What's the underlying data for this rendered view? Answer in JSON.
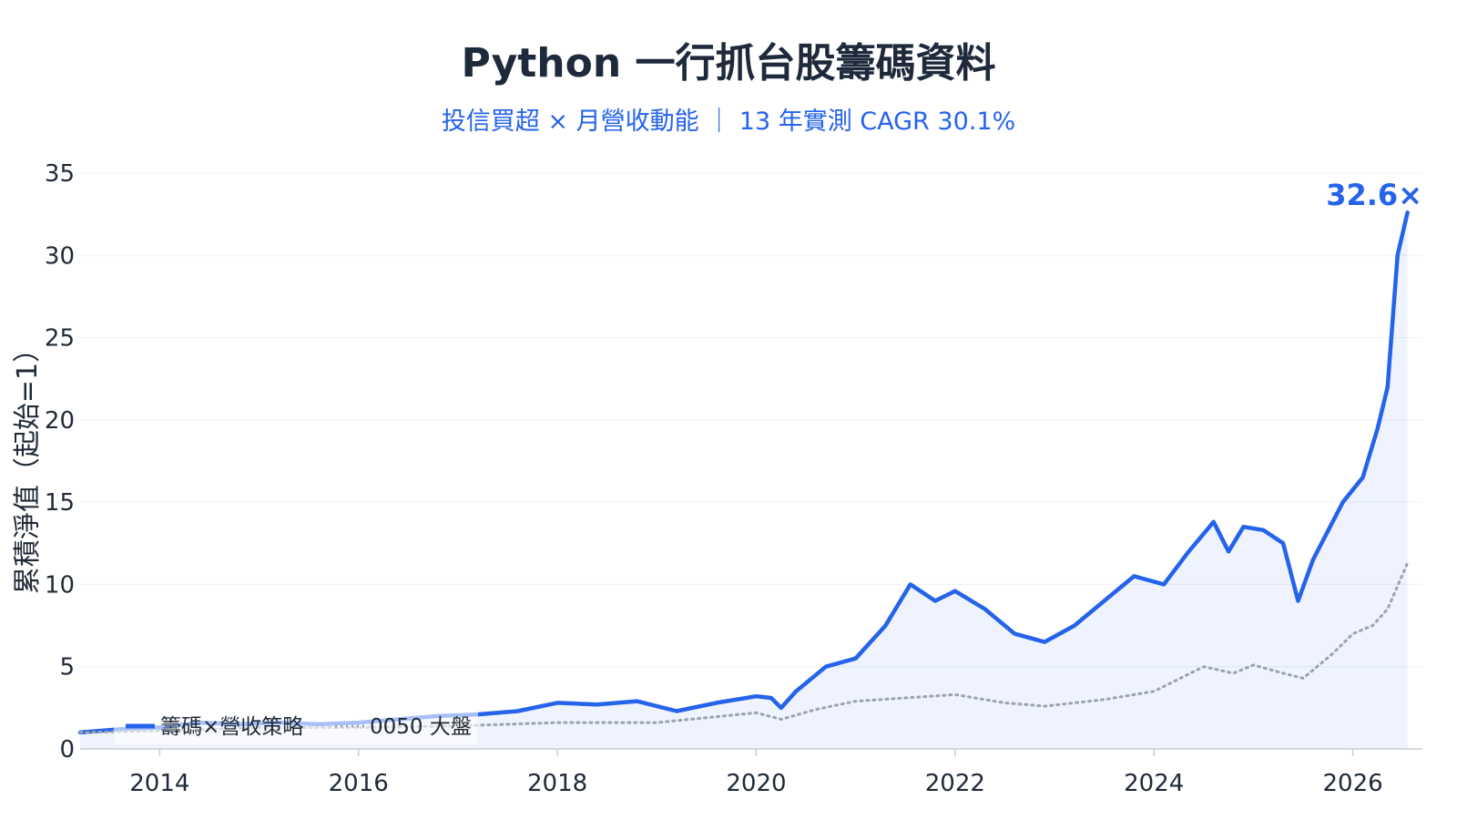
{
  "title": "Python 一行抓台股籌碼資料",
  "subtitle": "投信買超 × 月營收動能 ｜ 13 年實測 CAGR 30.1%",
  "chart_data": {
    "type": "line",
    "ylabel": "累積淨值（起始=1）",
    "ylim": [
      0,
      35
    ],
    "xlim": [
      2013.2,
      2026.7
    ],
    "y_ticks": [
      0,
      5,
      10,
      15,
      20,
      25,
      30,
      35
    ],
    "x_ticks": [
      2014,
      2016,
      2018,
      2020,
      2022,
      2024,
      2026
    ],
    "grid": true,
    "legend_position": "bottom-left",
    "end_label": "32.6×",
    "series": [
      {
        "name": "籌碼×營收策略",
        "color": "#2563eb",
        "style": "solid",
        "fill": true,
        "points": [
          [
            2013.2,
            1.0
          ],
          [
            2013.6,
            1.2
          ],
          [
            2014.0,
            1.3
          ],
          [
            2014.4,
            1.6
          ],
          [
            2014.8,
            1.5
          ],
          [
            2015.2,
            1.6
          ],
          [
            2015.6,
            1.5
          ],
          [
            2016.0,
            1.6
          ],
          [
            2016.4,
            1.8
          ],
          [
            2016.8,
            2.0
          ],
          [
            2017.2,
            2.1
          ],
          [
            2017.6,
            2.3
          ],
          [
            2018.0,
            2.8
          ],
          [
            2018.4,
            2.7
          ],
          [
            2018.8,
            2.9
          ],
          [
            2019.2,
            2.3
          ],
          [
            2019.6,
            2.8
          ],
          [
            2020.0,
            3.2
          ],
          [
            2020.15,
            3.1
          ],
          [
            2020.25,
            2.5
          ],
          [
            2020.4,
            3.5
          ],
          [
            2020.7,
            5.0
          ],
          [
            2021.0,
            5.5
          ],
          [
            2021.3,
            7.5
          ],
          [
            2021.55,
            10.0
          ],
          [
            2021.8,
            9.0
          ],
          [
            2022.0,
            9.6
          ],
          [
            2022.3,
            8.5
          ],
          [
            2022.6,
            7.0
          ],
          [
            2022.9,
            6.5
          ],
          [
            2023.2,
            7.5
          ],
          [
            2023.5,
            9.0
          ],
          [
            2023.8,
            10.5
          ],
          [
            2024.1,
            10.0
          ],
          [
            2024.35,
            12.0
          ],
          [
            2024.6,
            13.8
          ],
          [
            2024.75,
            12.0
          ],
          [
            2024.9,
            13.5
          ],
          [
            2025.1,
            13.3
          ],
          [
            2025.3,
            12.5
          ],
          [
            2025.45,
            9.0
          ],
          [
            2025.6,
            11.5
          ],
          [
            2025.9,
            15.0
          ],
          [
            2026.1,
            16.5
          ],
          [
            2026.25,
            19.5
          ],
          [
            2026.35,
            22.0
          ],
          [
            2026.45,
            30.0
          ],
          [
            2026.55,
            32.6
          ]
        ]
      },
      {
        "name": "0050 大盤",
        "color": "#9ca3af",
        "style": "dotted",
        "fill": false,
        "points": [
          [
            2013.2,
            1.0
          ],
          [
            2014.0,
            1.1
          ],
          [
            2015.0,
            1.3
          ],
          [
            2016.0,
            1.3
          ],
          [
            2017.0,
            1.4
          ],
          [
            2018.0,
            1.6
          ],
          [
            2019.0,
            1.6
          ],
          [
            2020.0,
            2.2
          ],
          [
            2020.25,
            1.8
          ],
          [
            2020.6,
            2.4
          ],
          [
            2021.0,
            2.9
          ],
          [
            2021.5,
            3.1
          ],
          [
            2022.0,
            3.3
          ],
          [
            2022.5,
            2.8
          ],
          [
            2022.9,
            2.6
          ],
          [
            2023.5,
            3.0
          ],
          [
            2024.0,
            3.5
          ],
          [
            2024.5,
            5.0
          ],
          [
            2024.8,
            4.6
          ],
          [
            2025.0,
            5.1
          ],
          [
            2025.3,
            4.6
          ],
          [
            2025.5,
            4.3
          ],
          [
            2025.8,
            5.8
          ],
          [
            2026.0,
            7.0
          ],
          [
            2026.2,
            7.5
          ],
          [
            2026.35,
            8.5
          ],
          [
            2026.55,
            11.3
          ]
        ]
      }
    ]
  }
}
